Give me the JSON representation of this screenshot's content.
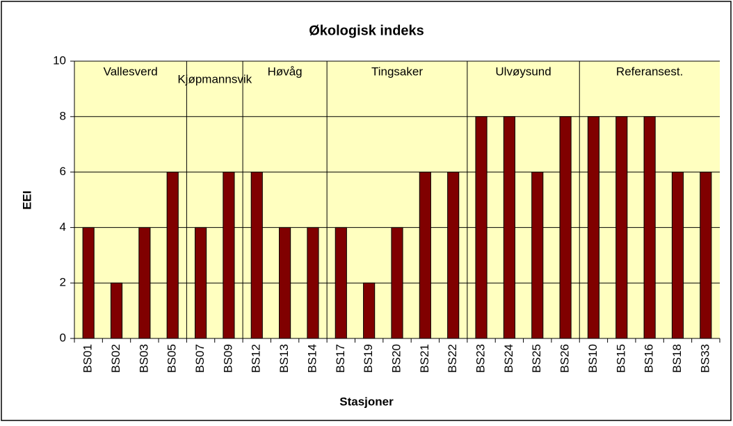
{
  "chart_data": {
    "type": "bar",
    "title": "Økologisk indeks",
    "x_label": "Stasjoner",
    "y_label": "EEI",
    "categories": [
      "BS01",
      "BS02",
      "BS03",
      "BS05",
      "BS07",
      "BS09",
      "BS12",
      "BS13",
      "BS14",
      "BS17",
      "BS19",
      "BS20",
      "BS21",
      "BS22",
      "BS23",
      "BS24",
      "BS25",
      "BS26",
      "BS10",
      "BS15",
      "BS16",
      "BS18",
      "BS33"
    ],
    "values": [
      4,
      2,
      4,
      6,
      4,
      6,
      6,
      4,
      4,
      4,
      2,
      4,
      6,
      6,
      8,
      8,
      6,
      8,
      8,
      8,
      8,
      6,
      6
    ],
    "groups": [
      {
        "name": "Vallesverd",
        "count": 4
      },
      {
        "name": "Kjøpmannsvik",
        "count": 2
      },
      {
        "name": "Høvåg",
        "count": 3
      },
      {
        "name": "Tingsaker",
        "count": 5
      },
      {
        "name": "Ulvøysund",
        "count": 4
      },
      {
        "name": "Referansest.",
        "count": 5
      }
    ],
    "color": "#800000",
    "ylim": [
      0,
      10
    ],
    "yticks": [
      0,
      2,
      4,
      6,
      8,
      10
    ],
    "grid": true
  }
}
